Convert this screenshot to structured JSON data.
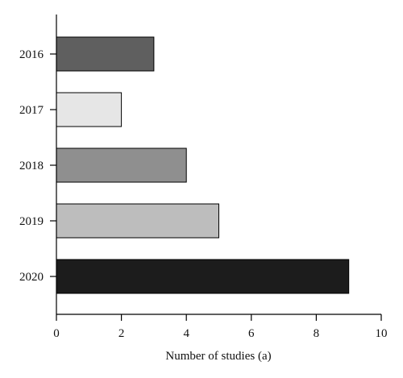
{
  "chart_data": {
    "type": "bar",
    "orientation": "horizontal",
    "categories": [
      "2016",
      "2017",
      "2018",
      "2019",
      "2020"
    ],
    "values": [
      3,
      2,
      4,
      5,
      9
    ],
    "colors": [
      "#5f5f5f",
      "#e6e6e6",
      "#8f8f8f",
      "#bdbdbd",
      "#1c1c1c"
    ],
    "xlabel": "Number of studies (a)",
    "ylabel": "",
    "xlim": [
      0,
      10
    ],
    "xticks": [
      "0",
      "2",
      "4",
      "6",
      "8",
      "10"
    ],
    "grid": false
  }
}
